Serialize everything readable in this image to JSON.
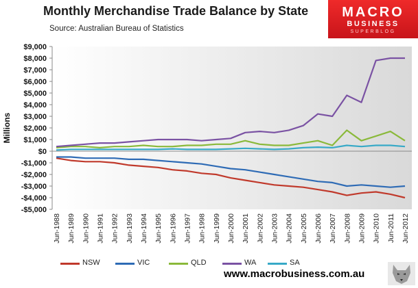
{
  "header": {
    "title": "Monthly Merchandise Trade Balance by State",
    "subtitle": "Source:  Australian Bureau of Statistics"
  },
  "logo": {
    "line1": "MACRO",
    "line2": "BUSINESS",
    "line3": "SUPERBLOG"
  },
  "footer": {
    "website": "www.macrobusiness.com.au"
  },
  "chart_data": {
    "type": "line",
    "ylabel": "Millions",
    "ylim": [
      -5000,
      9000
    ],
    "yticks": [
      9000,
      8000,
      7000,
      6000,
      5000,
      4000,
      3000,
      2000,
      1000,
      0,
      -1000,
      -2000,
      -3000,
      -4000,
      -5000
    ],
    "ytick_labels": [
      "$9,000",
      "$8,000",
      "$7,000",
      "$6,000",
      "$5,000",
      "$4,000",
      "$3,000",
      "$2,000",
      "$1,000",
      "$0",
      "-$1,000",
      "-$2,000",
      "-$3,000",
      "-$4,000",
      "-$5,000"
    ],
    "categories": [
      "Jun-1988",
      "Jun-1989",
      "Jun-1990",
      "Jun-1991",
      "Jun-1992",
      "Jun-1993",
      "Jun-1994",
      "Jun-1995",
      "Jun-1996",
      "Jun-1997",
      "Jun-1998",
      "Jun-1999",
      "Jun-2000",
      "Jun-2001",
      "Jun-2002",
      "Jun-2003",
      "Jun-2004",
      "Jun-2005",
      "Jun-2006",
      "Jun-2007",
      "Jun-2008",
      "Jun-2009",
      "Jun-2010",
      "Jun-2011",
      "Jun-2012"
    ],
    "grid": false,
    "legend_position": "bottom",
    "series": [
      {
        "name": "NSW",
        "color": "#c0392b",
        "values": [
          -600,
          -800,
          -900,
          -900,
          -1000,
          -1200,
          -1300,
          -1400,
          -1600,
          -1700,
          -1900,
          -2000,
          -2300,
          -2500,
          -2700,
          -2900,
          -3000,
          -3100,
          -3300,
          -3500,
          -3800,
          -3600,
          -3500,
          -3700,
          -4000
        ]
      },
      {
        "name": "VIC",
        "color": "#2e6bb5",
        "values": [
          -500,
          -500,
          -600,
          -600,
          -600,
          -700,
          -700,
          -800,
          -900,
          -1000,
          -1100,
          -1300,
          -1500,
          -1600,
          -1800,
          -2000,
          -2200,
          -2400,
          -2600,
          -2700,
          -3000,
          -2900,
          -3000,
          -3100,
          -3000
        ]
      },
      {
        "name": "QLD",
        "color": "#8ab93a",
        "values": [
          300,
          400,
          400,
          300,
          400,
          400,
          500,
          400,
          400,
          500,
          500,
          600,
          600,
          900,
          600,
          500,
          500,
          700,
          900,
          500,
          1800,
          900,
          1300,
          1700,
          900
        ]
      },
      {
        "name": "WA",
        "color": "#7a52a3",
        "values": [
          400,
          500,
          600,
          700,
          700,
          800,
          900,
          1000,
          1000,
          1000,
          900,
          1000,
          1100,
          1600,
          1700,
          1600,
          1800,
          2200,
          3200,
          3000,
          4800,
          4200,
          7800,
          8000,
          8000
        ]
      },
      {
        "name": "SA",
        "color": "#37a9c7",
        "values": [
          100,
          150,
          150,
          150,
          150,
          150,
          150,
          150,
          200,
          150,
          150,
          150,
          200,
          250,
          200,
          150,
          200,
          300,
          350,
          300,
          500,
          400,
          500,
          500,
          400
        ]
      }
    ]
  }
}
